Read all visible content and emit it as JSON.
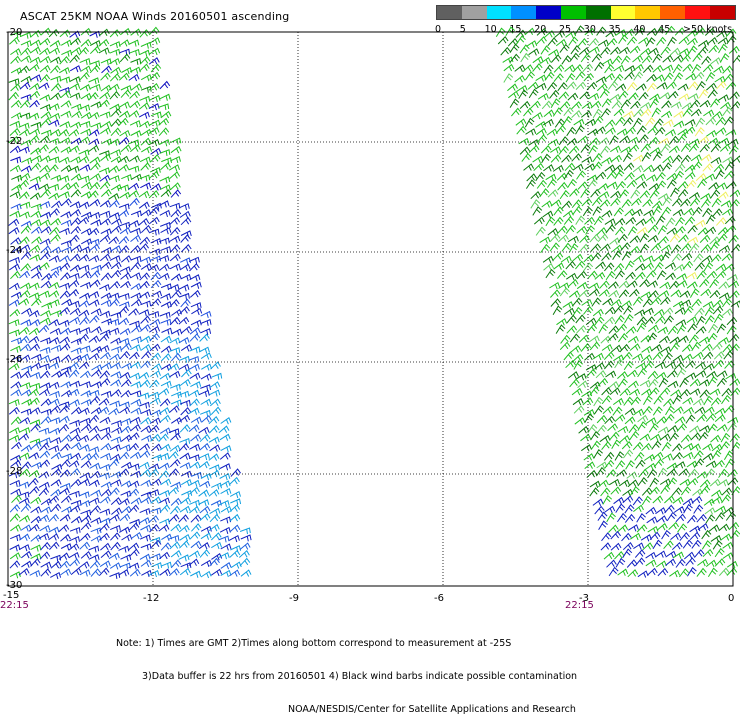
{
  "title": "ASCAT 25KM NOAA Winds 20160501 ascending",
  "legend": {
    "labels": [
      "0",
      "5",
      "10",
      "15",
      "20",
      "25",
      "30",
      "35",
      "40",
      "45",
      ">50 knots"
    ],
    "colors": [
      "#606060",
      "#a0a0a0",
      "#00e0ff",
      "#0090ff",
      "#0000c8",
      "#00c000",
      "#007000",
      "#ffff30",
      "#ffc800",
      "#ff6000",
      "#ff1010",
      "#c80000"
    ]
  },
  "map": {
    "lon_range": [
      -15,
      0
    ],
    "lat_range": [
      -30,
      -20
    ],
    "lon_ticks": [
      "-15",
      "-12",
      "-9",
      "-6",
      "-3",
      "0"
    ],
    "lat_ticks": [
      "-20",
      "-22",
      "-24",
      "-26",
      "-28",
      "-30"
    ],
    "time_labels": [
      "22:15",
      "22:15"
    ],
    "swaths": [
      {
        "name": "left-swath",
        "region": "lon -15 to -10.4"
      },
      {
        "name": "right-swath",
        "region": "lon -4.8 to 0"
      }
    ]
  },
  "notes": {
    "line1": "Note: 1) Times are GMT 2)Times along bottom correspond to measurement at -25S",
    "line2": "3)Data buffer is 22 hrs from 20160501 4) Black wind barbs indicate possible contamination",
    "line3": "NOAA/NESDIS/Center for Satellite Applications and Research"
  }
}
